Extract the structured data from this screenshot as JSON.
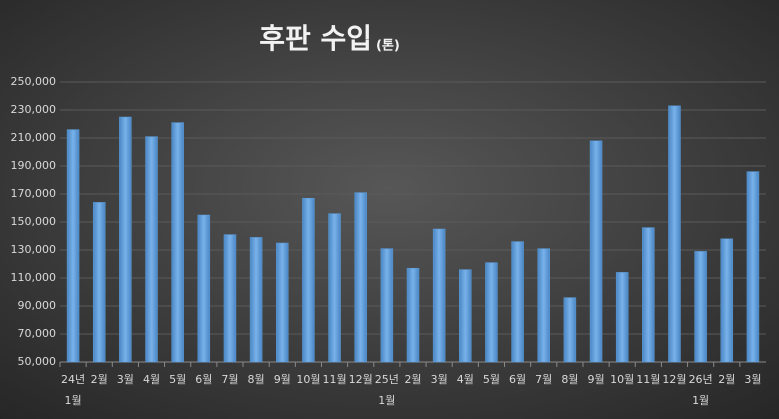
{
  "chart_data": {
    "type": "bar",
    "title": "후판 수입",
    "title_unit": "(톤)",
    "categories": [
      "24년 1월",
      "2월",
      "3월",
      "4월",
      "5월",
      "6월",
      "7월",
      "8월",
      "9월",
      "10월",
      "11월",
      "12월",
      "25년 1월",
      "2월",
      "3월",
      "4월",
      "5월",
      "6월",
      "7월",
      "8월",
      "9월",
      "10월",
      "11월",
      "12월",
      "26년 1월",
      "2월",
      "3월"
    ],
    "values": [
      216000,
      164000,
      225000,
      211000,
      221000,
      155000,
      141000,
      139000,
      135000,
      167000,
      156000,
      171000,
      131000,
      117000,
      145000,
      116000,
      121000,
      136000,
      131000,
      96000,
      208000,
      114000,
      146000,
      233000,
      129000,
      138000,
      186000
    ],
    "color": "#5b9bd5",
    "ylim": [
      50000,
      250000
    ],
    "yticks": [
      {
        "value": 50000,
        "label": "50,000"
      },
      {
        "value": 70000,
        "label": "70,000"
      },
      {
        "value": 90000,
        "label": "90,000"
      },
      {
        "value": 110000,
        "label": "110,000"
      },
      {
        "value": 130000,
        "label": "130,000"
      },
      {
        "value": 150000,
        "label": "150,000"
      },
      {
        "value": 170000,
        "label": "170,000"
      },
      {
        "value": 190000,
        "label": "190,000"
      },
      {
        "value": 210000,
        "label": "210,000"
      },
      {
        "value": 230000,
        "label": "230,000"
      },
      {
        "value": 250000,
        "label": "250,000"
      }
    ],
    "grid": true
  }
}
